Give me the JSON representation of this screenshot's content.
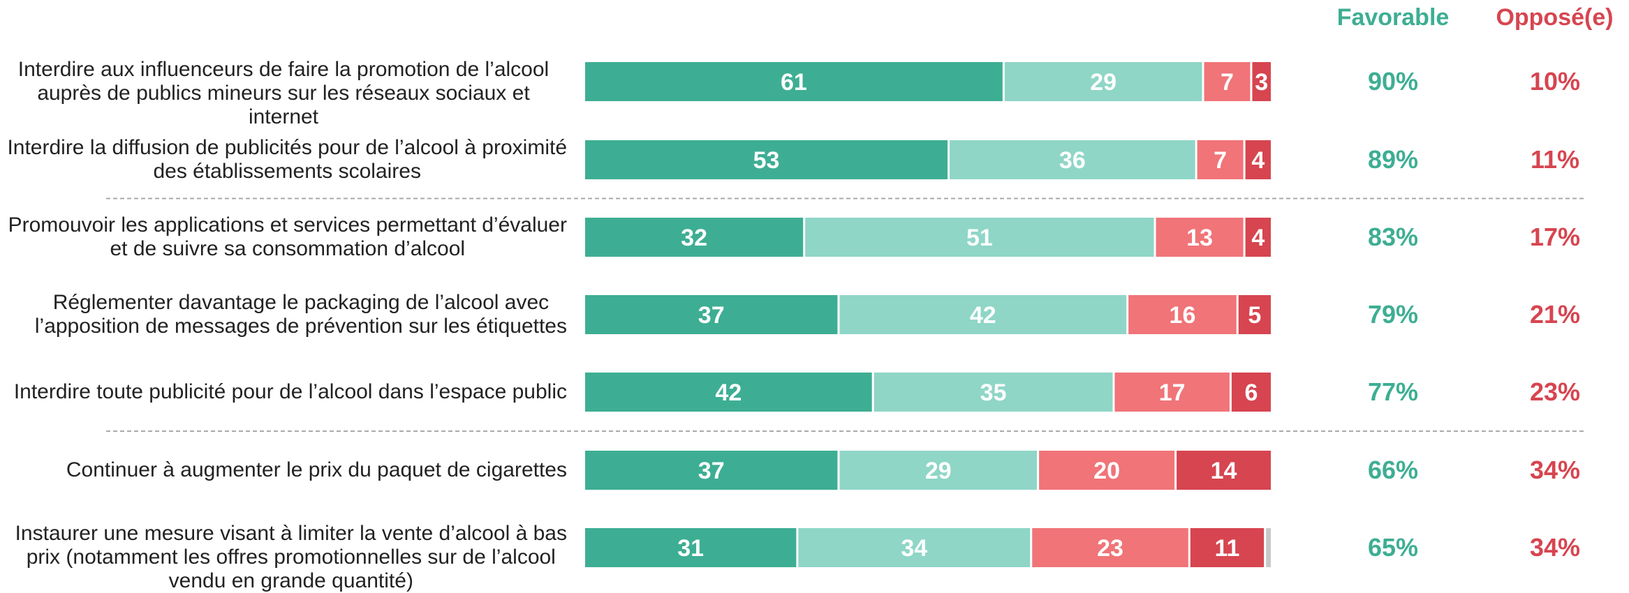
{
  "header": {
    "favorable": "Favorable",
    "oppose": "Opposé(e)"
  },
  "colors": {
    "tres_favorable": "#3dae93",
    "plutot_favorable": "#8fd6c7",
    "plutot_oppose": "#f07478",
    "tres_oppose": "#d64550",
    "favorable_text": "#3dae93",
    "oppose_text": "#d64550",
    "nr": "#c8c8c8"
  },
  "chart_data": {
    "type": "bar",
    "orientation": "horizontal",
    "stacked": true,
    "categories": [
      "Interdire aux influenceurs de faire la promotion de l’alcool auprès de publics mineurs sur les réseaux sociaux et internet",
      "Interdire la diffusion de publicités pour de l’alcool à proximité des établissements scolaires",
      "Promouvoir les applications et services permettant d’évaluer et de suivre sa consommation d’alcool",
      "Réglementer davantage le packaging de l’alcool avec l’apposition de messages de prévention sur les étiquettes",
      "Interdire toute publicité pour de l’alcool dans l’espace public",
      "Continuer à augmenter le prix du paquet de cigarettes",
      "Instaurer une mesure visant à limiter la vente d’alcool à bas prix (notamment les offres promotionnelles sur de l’alcool vendu en grande quantité)"
    ],
    "category_lines": [
      [
        "Interdire aux influenceurs de faire la promotion de l’alcool",
        "auprès de publics mineurs sur les réseaux sociaux et internet"
      ],
      [
        "Interdire la diffusion de publicités pour de l’alcool à proximité",
        "des établissements scolaires"
      ],
      [
        "Promouvoir les applications et services permettant d’évaluer",
        "et de suivre sa consommation d’alcool"
      ],
      [
        "Réglementer davantage le packaging de l’alcool avec",
        "l’apposition de messages de prévention sur les étiquettes"
      ],
      [
        "Interdire toute publicité pour de l’alcool dans l’espace public"
      ],
      [
        "Continuer à augmenter le prix du paquet de cigarettes"
      ],
      [
        "Instaurer une mesure visant à limiter la vente d’alcool à bas",
        "prix (notamment les offres promotionnelles sur de l’alcool",
        "vendu en grande quantité)"
      ]
    ],
    "series": [
      {
        "values": [
          61,
          53,
          32,
          37,
          42,
          37,
          31
        ]
      },
      {
        "values": [
          29,
          36,
          51,
          42,
          35,
          29,
          34
        ]
      },
      {
        "values": [
          7,
          7,
          13,
          16,
          17,
          20,
          23
        ]
      },
      {
        "values": [
          3,
          4,
          4,
          5,
          6,
          14,
          11
        ]
      },
      {
        "values": [
          0,
          0,
          0,
          0,
          0,
          0,
          1
        ]
      }
    ],
    "favorable": [
      "90%",
      "89%",
      "83%",
      "79%",
      "77%",
      "66%",
      "65%"
    ],
    "oppose": [
      "10%",
      "11%",
      "17%",
      "21%",
      "23%",
      "34%",
      "34%"
    ],
    "separators_after": [
      1,
      4
    ]
  }
}
